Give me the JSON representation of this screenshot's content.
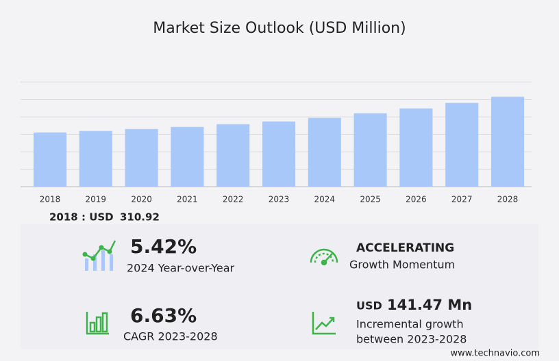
{
  "chart_data": {
    "type": "bar",
    "title": "Market Size Outlook (USD Million)",
    "categories": [
      "2018",
      "2019",
      "2020",
      "2021",
      "2022",
      "2023",
      "2024",
      "2025",
      "2026",
      "2027",
      "2028"
    ],
    "values": [
      310.92,
      318.8,
      330.6,
      342.4,
      358.2,
      374.0,
      394.3,
      421.0,
      448.7,
      480.0,
      515.5
    ],
    "color": "#a8c8fa",
    "ylim": [
      0,
      600
    ],
    "yticks": [
      0,
      100,
      200,
      300,
      400,
      500,
      600
    ],
    "grid": true
  },
  "highlight_label": "2018 : USD",
  "stats": [
    {
      "value": "5.42%",
      "label": "2024 Year-over-Year"
    },
    {
      "value": "ACCELERATING",
      "label": "Growth Momentum"
    },
    {
      "value": "6.63%",
      "label": "CAGR 2023-2028"
    },
    {
      "prefix": "USD",
      "value": "141.47 Mn",
      "label": "Incremental growth",
      "label2": "between 2023-2028"
    }
  ],
  "footer": "www.technavio.com"
}
